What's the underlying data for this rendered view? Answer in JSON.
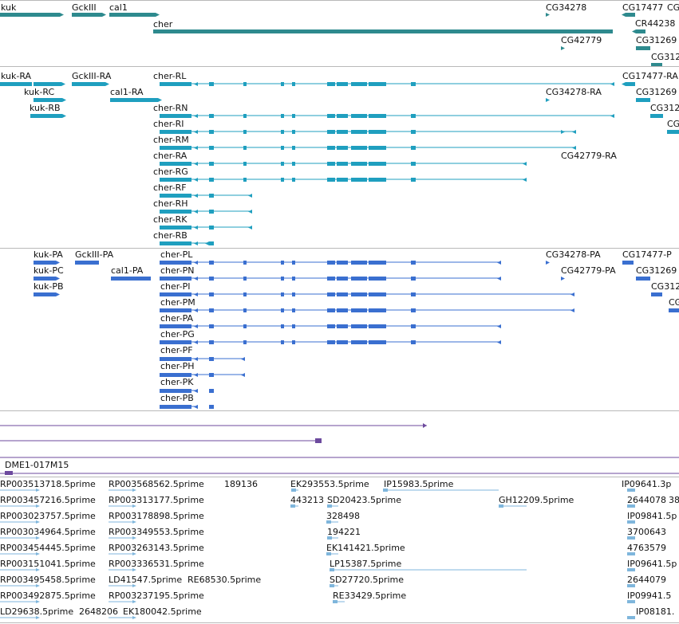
{
  "colors": {
    "gene": "#2e8a8e",
    "transcript": "#1f9fbf",
    "protein": "#3a6fd0",
    "alignment": "#6d4a9e",
    "est": "#7fb6dc",
    "separator": "#b9b9b9"
  },
  "tracks": {
    "genes": {
      "labels": [
        "kuk",
        "GckIII",
        "cal1",
        "cher",
        "CG34278",
        "CG42779",
        "CG17477",
        "CG",
        "CR44238",
        "CG31269",
        "CG312"
      ]
    },
    "transcripts": {
      "labels": [
        "kuk-RA",
        "kuk-RC",
        "kuk-RB",
        "GckIII-RA",
        "cal1-RA",
        "cher-RL",
        "cher-RN",
        "cher-RI",
        "cher-RM",
        "cher-RA",
        "cher-RG",
        "cher-RF",
        "cher-RH",
        "cher-RK",
        "cher-RB",
        "CG34278-RA",
        "CG42779-RA",
        "CG17477-RA",
        "CG31269",
        "CG312",
        "CG"
      ]
    },
    "proteins": {
      "labels": [
        "kuk-PA",
        "kuk-PC",
        "kuk-PB",
        "GckIII-PA",
        "cal1-PA",
        "cher-PL",
        "cher-PN",
        "cher-PI",
        "cher-PM",
        "cher-PA",
        "cher-PG",
        "cher-PF",
        "cher-PH",
        "cher-PK",
        "cher-PB",
        "CG34278-PA",
        "CG42779-PA",
        "CG17477-P",
        "CG31269",
        "CG312",
        "CG"
      ]
    },
    "clones": {
      "labels": [
        "DME1-017M15"
      ]
    },
    "ests": {
      "labels": [
        "RP003513718.5prime",
        "RP003568562.5prime",
        "189136",
        "EK293553.5prime",
        "IP15983.5prime",
        "IP09641.3p",
        "RP003457216.5prime",
        "RP003313177.5prime",
        "443213",
        "SD20423.5prime",
        "GH12209.5prime",
        "2644078",
        "38",
        "RP003023757.5prime",
        "RP003178898.5prime",
        "328498",
        "IP09841.5p",
        "RP003034964.5prime",
        "RP003349553.5prime",
        "194221",
        "3700643",
        "RP003454445.5prime",
        "RP003263143.5prime",
        "EK141421.5prime",
        "4763579",
        "RP003151041.5prime",
        "RP003336531.5prime",
        "LP15387.5prime",
        "IP09641.5p",
        "RP003495458.5prime",
        "LD41547.5prime",
        "RE68530.5prime",
        "SD27720.5prime",
        "2644079",
        "RP003492875.5prime",
        "RP003237195.5prime",
        "RE33429.5prime",
        "IP09941.5",
        "LD29638.5prime",
        "2648206",
        "EK180042.5prime",
        "IP08181."
      ]
    }
  }
}
